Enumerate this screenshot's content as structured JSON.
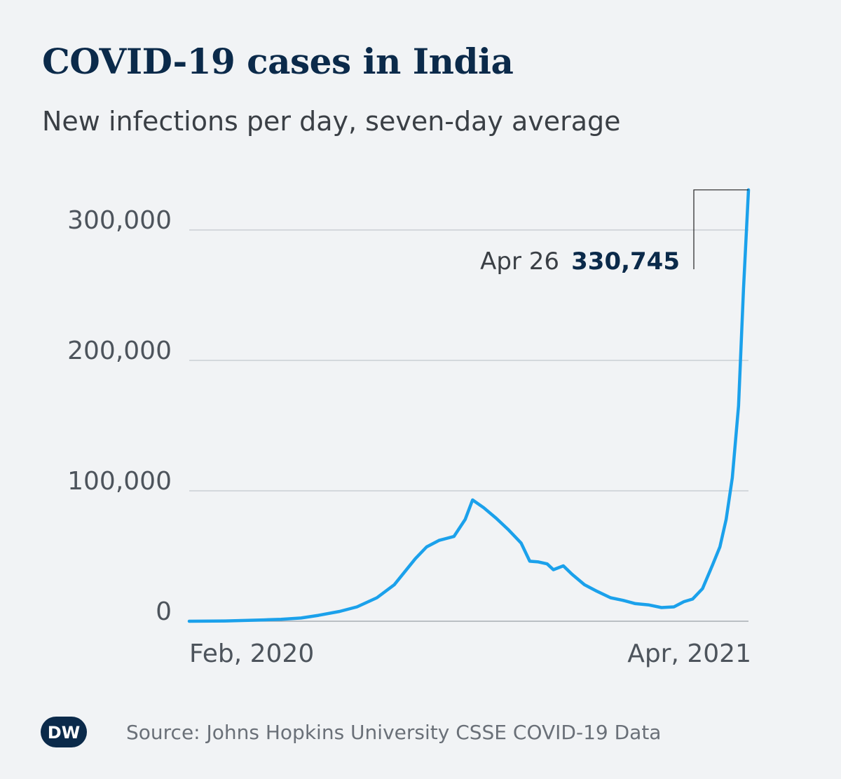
{
  "title": "COVID-19 cases in India",
  "subtitle": "New infections per day, seven-day average",
  "source": "Source: Johns Hopkins University CSSE COVID-19 Data",
  "logo_text": "DW",
  "colors": {
    "line": "#1ba1eb",
    "title": "#0b2a4a",
    "grid": "#c3c8ce",
    "background": "#f1f3f5"
  },
  "annotation": {
    "date": "Apr 26",
    "value": "330,745"
  },
  "chart_data": {
    "type": "line",
    "title": "COVID-19 cases in India",
    "subtitle": "New infections per day, seven-day average",
    "xlabel": "",
    "ylabel": "",
    "x_tick_labels": [
      "Feb, 2020",
      "Apr, 2021"
    ],
    "y_tick_labels": [
      "0",
      "100,000",
      "200,000",
      "300,000"
    ],
    "y_ticks": [
      0,
      100000,
      200000,
      300000
    ],
    "ylim": [
      0,
      300000
    ],
    "grid": true,
    "series": [
      {
        "color": "#1ba1eb",
        "x": [
          "2020-02-01",
          "2020-03-01",
          "2020-04-01",
          "2020-04-15",
          "2020-05-01",
          "2020-05-15",
          "2020-06-01",
          "2020-06-15",
          "2020-07-01",
          "2020-07-15",
          "2020-08-01",
          "2020-08-10",
          "2020-08-20",
          "2020-09-01",
          "2020-09-10",
          "2020-09-16",
          "2020-09-25",
          "2020-10-05",
          "2020-10-15",
          "2020-10-25",
          "2020-11-01",
          "2020-11-08",
          "2020-11-15",
          "2020-11-20",
          "2020-11-28",
          "2020-12-05",
          "2020-12-15",
          "2020-12-25",
          "2021-01-05",
          "2021-01-15",
          "2021-01-25",
          "2021-02-05",
          "2021-02-15",
          "2021-02-25",
          "2021-03-05",
          "2021-03-12",
          "2021-03-20",
          "2021-03-28",
          "2021-04-03",
          "2021-04-08",
          "2021-04-13",
          "2021-04-18",
          "2021-04-22",
          "2021-04-26"
        ],
        "y": [
          0,
          200,
          1000,
          1500,
          2500,
          4500,
          7500,
          11000,
          18000,
          28000,
          48000,
          57000,
          62000,
          65000,
          78000,
          93000,
          87000,
          79000,
          70000,
          60000,
          46000,
          45500,
          44000,
          39500,
          42500,
          36000,
          28000,
          23000,
          18000,
          16000,
          13500,
          12500,
          10500,
          11000,
          15000,
          17000,
          25000,
          43000,
          57000,
          78000,
          110000,
          165000,
          255000,
          330745
        ]
      }
    ]
  }
}
